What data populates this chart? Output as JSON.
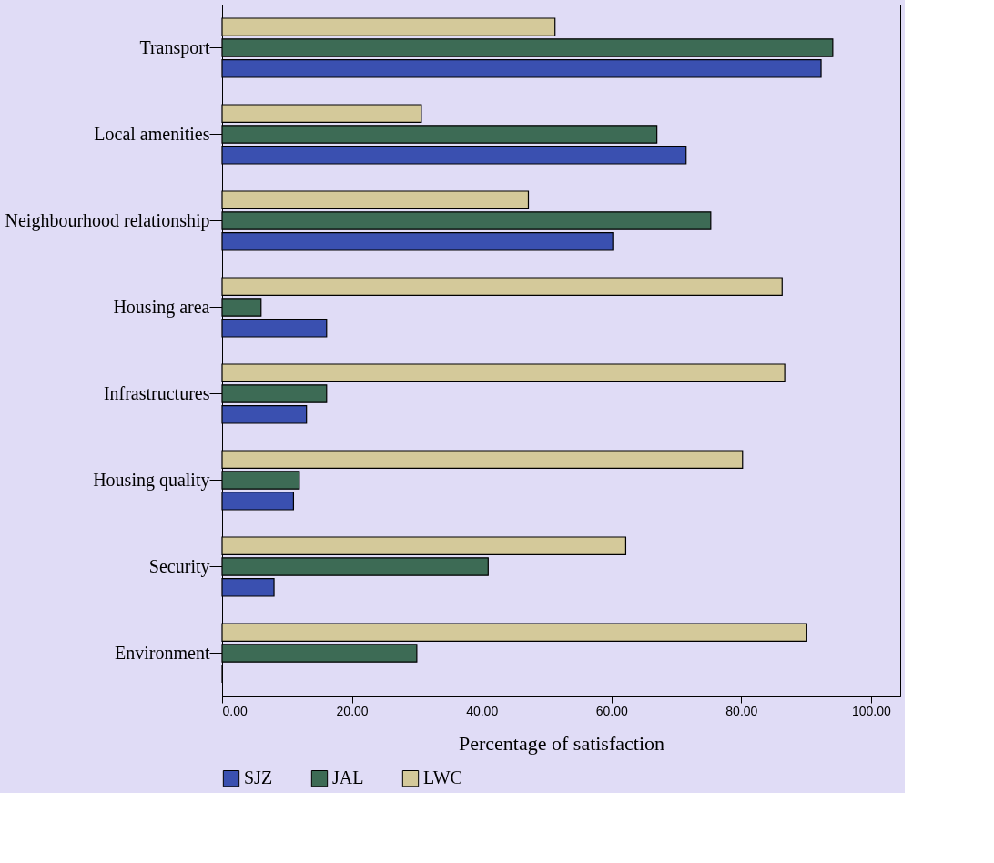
{
  "chart_data": {
    "type": "bar",
    "orientation": "horizontal",
    "xlabel": "Percentage of satisfaction",
    "categories": [
      "Transport",
      "Local amenities",
      "Neighbourhood relationship",
      "Housing area",
      "Infrastructures",
      "Housing quality",
      "Security",
      "Environment"
    ],
    "series": [
      {
        "name": "SJZ",
        "color": "#3a50b0",
        "values": [
          92.3,
          71.5,
          60.2,
          16.1,
          13.0,
          11.0,
          8.0,
          0
        ]
      },
      {
        "name": "JAL",
        "color": "#3d6b55",
        "values": [
          94.1,
          67.0,
          75.3,
          6.0,
          16.1,
          11.9,
          41.0,
          30.0
        ]
      },
      {
        "name": "LWC",
        "color": "#d4c99a",
        "values": [
          51.3,
          30.7,
          47.2,
          86.3,
          86.7,
          80.2,
          62.2,
          90.1
        ]
      }
    ],
    "xlim": [
      0,
      104.5
    ],
    "xticks": [
      {
        "value": 0,
        "label": "0.00"
      },
      {
        "value": 20,
        "label": "20.00"
      },
      {
        "value": 40,
        "label": "40.00"
      },
      {
        "value": 60,
        "label": "60.00"
      },
      {
        "value": 80,
        "label": "80.00"
      },
      {
        "value": 100,
        "label": "100.00"
      }
    ],
    "grid": false,
    "legend": "bottom"
  }
}
